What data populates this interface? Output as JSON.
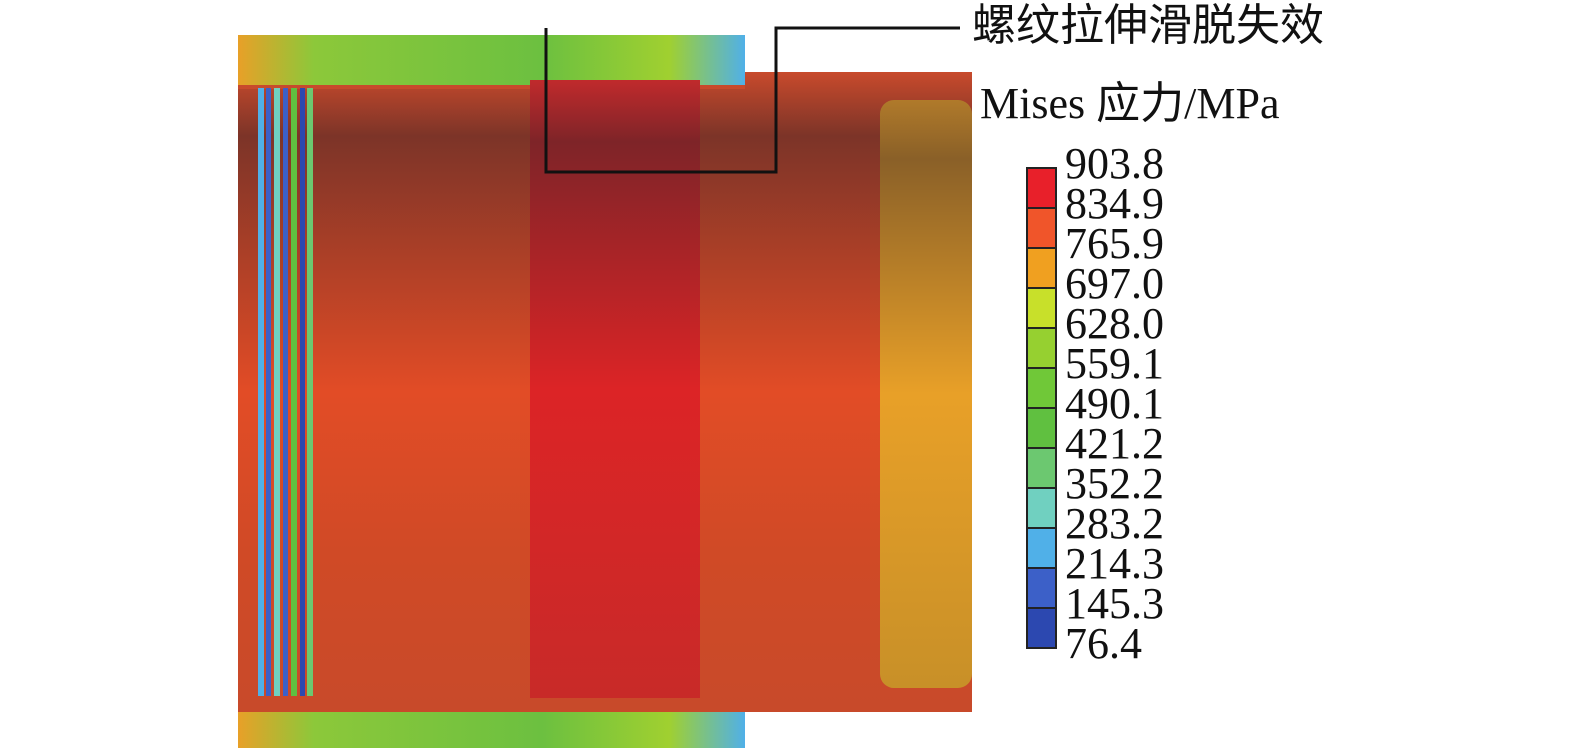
{
  "annotation": "螺纹拉伸滑脱失效",
  "legend": {
    "title": "Mises 应力/MPa",
    "labels": [
      "903.8",
      "834.9",
      "765.9",
      "697.0",
      "628.0",
      "559.1",
      "490.1",
      "421.2",
      "352.2",
      "283.2",
      "214.3",
      "145.3",
      "76.4"
    ]
  }
}
